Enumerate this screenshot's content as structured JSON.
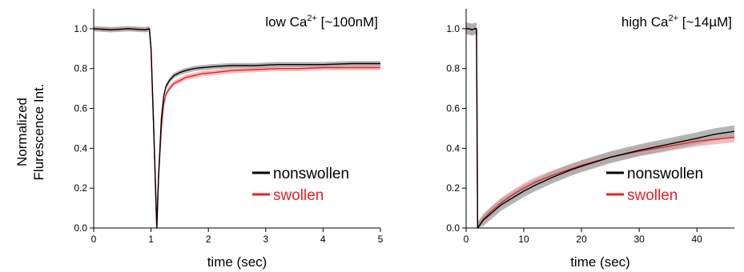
{
  "ylabel_line1": "Normalized",
  "ylabel_line2": "Flurescence Int.",
  "colors": {
    "nonswollen": "#000000",
    "swollen": "#e8202a",
    "nonswollen_band": "#a8a8a8",
    "swollen_band": "#f4a3a6"
  },
  "chart_data": [
    {
      "type": "line",
      "title_main": "low Ca",
      "title_sup": "2+",
      "title_tail": " [~100nM]",
      "xlabel": "time (sec)",
      "ylabel": "Normalized Flurescence Int.",
      "xlim": [
        0,
        5
      ],
      "ylim": [
        0,
        1.1
      ],
      "xticks": [
        0,
        1,
        2,
        3,
        4,
        5
      ],
      "yticks": [
        0.0,
        0.2,
        0.4,
        0.6,
        0.8,
        1.0
      ],
      "ytick_labels": [
        "0.0",
        "0.2",
        "0.4",
        "0.6",
        "0.8",
        "1.0"
      ],
      "legend": {
        "position": "bottom-right",
        "entries": [
          "nonswollen",
          "swollen"
        ]
      },
      "series": [
        {
          "name": "nonswollen",
          "x": [
            0,
            0.3,
            0.6,
            0.9,
            0.97,
            1.0,
            1.04,
            1.1,
            1.13,
            1.18,
            1.22,
            1.26,
            1.32,
            1.4,
            1.5,
            1.6,
            1.75,
            1.9,
            2.1,
            2.4,
            2.8,
            3.2,
            3.6,
            4.0,
            4.5,
            5.0
          ],
          "y": [
            1.0,
            0.995,
            1.0,
            0.995,
            1.0,
            0.9,
            0.55,
            0.0,
            0.25,
            0.55,
            0.66,
            0.71,
            0.74,
            0.765,
            0.78,
            0.79,
            0.8,
            0.805,
            0.81,
            0.815,
            0.815,
            0.82,
            0.82,
            0.82,
            0.825,
            0.825
          ],
          "band": 0.013
        },
        {
          "name": "swollen",
          "x": [
            0,
            0.3,
            0.6,
            0.9,
            0.97,
            1.0,
            1.04,
            1.1,
            1.13,
            1.18,
            1.22,
            1.26,
            1.32,
            1.4,
            1.5,
            1.6,
            1.75,
            1.9,
            2.1,
            2.4,
            2.8,
            3.2,
            3.6,
            4.0,
            4.5,
            5.0
          ],
          "y": [
            1.0,
            0.995,
            1.0,
            0.995,
            1.0,
            0.9,
            0.55,
            0.0,
            0.25,
            0.5,
            0.62,
            0.67,
            0.7,
            0.725,
            0.74,
            0.755,
            0.765,
            0.775,
            0.78,
            0.79,
            0.795,
            0.8,
            0.8,
            0.805,
            0.805,
            0.805
          ],
          "band": 0.013
        }
      ]
    },
    {
      "type": "line",
      "title_main": "high Ca",
      "title_sup": "2+",
      "title_tail": " [~14µM]",
      "xlabel": "time (sec)",
      "ylabel": "",
      "xlim": [
        0,
        46.5
      ],
      "ylim": [
        0,
        1.1
      ],
      "xticks": [
        0,
        10,
        20,
        30,
        40
      ],
      "yticks": [
        0.0,
        0.2,
        0.4,
        0.6,
        0.8,
        1.0
      ],
      "ytick_labels": [
        "0.0",
        "0.2",
        "0.4",
        "0.6",
        "0.8",
        "1.0"
      ],
      "legend": {
        "position": "bottom-right",
        "entries": [
          "nonswollen",
          "swollen"
        ]
      },
      "series": [
        {
          "name": "nonswollen",
          "x": [
            0,
            0.5,
            1.0,
            1.5,
            1.8,
            2.0,
            3,
            4,
            5,
            6,
            8,
            10,
            12,
            15,
            18,
            20,
            25,
            30,
            35,
            40,
            43,
            46.5
          ],
          "y": [
            1.0,
            1.0,
            0.995,
            1.0,
            1.0,
            0.0,
            0.04,
            0.065,
            0.09,
            0.115,
            0.15,
            0.185,
            0.215,
            0.255,
            0.29,
            0.31,
            0.355,
            0.39,
            0.42,
            0.45,
            0.47,
            0.485
          ],
          "band": 0.03
        },
        {
          "name": "swollen",
          "x": [
            0,
            0.5,
            1.0,
            1.5,
            1.8,
            2.0,
            3,
            4,
            5,
            6,
            8,
            10,
            12,
            15,
            18,
            20,
            25,
            30,
            35,
            40,
            43,
            46.5
          ],
          "y": [
            1.0,
            1.0,
            0.995,
            1.0,
            1.0,
            0.0,
            0.045,
            0.075,
            0.1,
            0.125,
            0.165,
            0.2,
            0.23,
            0.265,
            0.295,
            0.315,
            0.355,
            0.385,
            0.41,
            0.435,
            0.445,
            0.455
          ],
          "band": 0.025
        }
      ]
    }
  ]
}
